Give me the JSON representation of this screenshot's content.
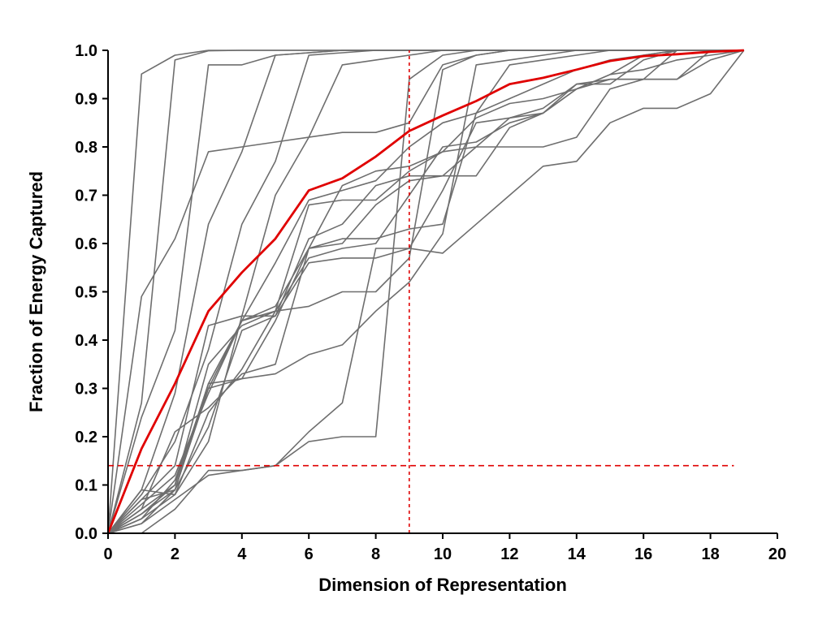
{
  "chart_data": {
    "type": "line",
    "title": "",
    "xlabel": "Dimension of Representation",
    "ylabel": "Fraction of Energy Captured",
    "xlim": [
      0,
      20
    ],
    "ylim": [
      0,
      1
    ],
    "xticks": [
      "0",
      "2",
      "4",
      "6",
      "8",
      "10",
      "12",
      "14",
      "16",
      "18",
      "20"
    ],
    "yticks": [
      "0.0",
      "0.1",
      "0.2",
      "0.3",
      "0.4",
      "0.5",
      "0.6",
      "0.7",
      "0.8",
      "0.9",
      "1.0"
    ],
    "grid": false,
    "legend": "none",
    "colors": {
      "individual": "#6e6e6e",
      "mean": "#e00000",
      "reference": "#e00000"
    },
    "x": [
      0,
      1,
      2,
      3,
      4,
      5,
      6,
      7,
      8,
      9,
      10,
      11,
      12,
      13,
      14,
      15,
      16,
      17,
      18,
      19
    ],
    "series": [
      {
        "values": [
          0,
          0.951,
          0.99,
          1.0,
          1.0,
          1.0,
          1.0,
          1.0,
          1.0,
          1.0,
          1.0,
          1.0,
          1.0,
          1.0,
          1.0,
          1.0,
          1.0,
          1.0,
          1.0,
          1.0
        ]
      },
      {
        "values": [
          0,
          0.49,
          0.61,
          0.79,
          0.8,
          0.81,
          0.82,
          0.83,
          0.83,
          0.85,
          0.97,
          0.99,
          1.0,
          1.0,
          1.0,
          1.0,
          1.0,
          1.0,
          1.0,
          1.0
        ]
      },
      {
        "values": [
          0,
          0.27,
          0.98,
          0.999,
          1.0,
          1.0,
          1.0,
          1.0,
          1.0,
          1.0,
          1.0,
          1.0,
          1.0,
          1.0,
          1.0,
          1.0,
          1.0,
          1.0,
          1.0,
          1.0
        ]
      },
      {
        "values": [
          0,
          0.24,
          0.42,
          0.97,
          0.97,
          0.99,
          0.995,
          1.0,
          1.0,
          1.0,
          1.0,
          1.0,
          1.0,
          1.0,
          1.0,
          1.0,
          1.0,
          1.0,
          1.0,
          1.0
        ]
      },
      {
        "values": [
          0,
          0.09,
          0.29,
          0.64,
          0.79,
          0.99,
          0.995,
          1.0,
          1.0,
          1.0,
          1.0,
          1.0,
          1.0,
          1.0,
          1.0,
          1.0,
          1.0,
          1.0,
          1.0,
          1.0
        ]
      },
      {
        "values": [
          0,
          0.08,
          0.19,
          0.38,
          0.64,
          0.77,
          0.99,
          0.995,
          1.0,
          1.0,
          1.0,
          1.0,
          1.0,
          1.0,
          1.0,
          1.0,
          1.0,
          1.0,
          1.0,
          1.0
        ]
      },
      {
        "values": [
          0,
          0.07,
          0.14,
          0.43,
          0.45,
          0.7,
          0.82,
          0.97,
          0.98,
          0.99,
          1.0,
          1.0,
          1.0,
          1.0,
          1.0,
          1.0,
          1.0,
          1.0,
          1.0,
          1.0
        ]
      },
      {
        "values": [
          0,
          0.06,
          0.12,
          0.29,
          0.44,
          0.46,
          0.47,
          0.5,
          0.5,
          0.57,
          0.96,
          0.99,
          1.0,
          1.0,
          1.0,
          1.0,
          1.0,
          1.0,
          1.0,
          1.0
        ]
      },
      {
        "values": [
          0,
          0.05,
          0.21,
          0.26,
          0.33,
          0.35,
          0.59,
          0.61,
          0.61,
          0.63,
          0.64,
          0.87,
          0.97,
          0.98,
          0.99,
          1.0,
          1.0,
          1.0,
          1.0,
          1.0
        ]
      },
      {
        "values": [
          0,
          0.04,
          0.1,
          0.31,
          0.32,
          0.33,
          0.37,
          0.39,
          0.46,
          0.52,
          0.62,
          0.97,
          0.98,
          0.99,
          1.0,
          1.0,
          1.0,
          1.0,
          1.0,
          1.0
        ]
      },
      {
        "values": [
          0,
          0.09,
          0.08,
          0.19,
          0.45,
          0.45,
          0.61,
          0.64,
          0.72,
          0.74,
          0.74,
          0.74,
          0.84,
          0.87,
          0.92,
          0.94,
          0.94,
          1.0,
          1.0,
          1.0
        ]
      },
      {
        "values": [
          0,
          0.07,
          0.09,
          0.3,
          0.32,
          0.44,
          0.59,
          0.72,
          0.75,
          0.76,
          0.79,
          0.8,
          0.86,
          0.88,
          0.93,
          0.93,
          0.98,
          1.0,
          1.0,
          1.0
        ]
      },
      {
        "values": [
          0,
          0.02,
          0.07,
          0.12,
          0.13,
          0.14,
          0.19,
          0.2,
          0.2,
          0.94,
          0.99,
          1.0,
          1.0,
          1.0,
          1.0,
          1.0,
          1.0,
          1.0,
          1.0,
          1.0
        ]
      },
      {
        "values": [
          0,
          0.0,
          0.05,
          0.13,
          0.13,
          0.14,
          0.21,
          0.27,
          0.59,
          0.59,
          0.71,
          0.85,
          0.86,
          0.87,
          0.93,
          0.94,
          0.94,
          0.94,
          1.0,
          1.0
        ]
      },
      {
        "values": [
          0,
          0.03,
          0.08,
          0.25,
          0.34,
          0.46,
          0.68,
          0.69,
          0.69,
          0.75,
          0.79,
          0.86,
          0.89,
          0.9,
          0.92,
          0.95,
          0.99,
          1.0,
          1.0,
          1.0
        ]
      },
      {
        "values": [
          0,
          0.02,
          0.09,
          0.31,
          0.44,
          0.56,
          0.69,
          0.71,
          0.73,
          0.8,
          0.85,
          0.87,
          0.9,
          0.93,
          0.96,
          0.98,
          0.99,
          1.0,
          1.0,
          1.0
        ]
      },
      {
        "values": [
          0,
          0.04,
          0.09,
          0.22,
          0.42,
          0.45,
          0.56,
          0.57,
          0.57,
          0.59,
          0.58,
          0.64,
          0.7,
          0.76,
          0.77,
          0.85,
          0.88,
          0.88,
          0.91,
          1.0
        ]
      },
      {
        "values": [
          0,
          0.03,
          0.11,
          0.3,
          0.44,
          0.47,
          0.59,
          0.6,
          0.68,
          0.73,
          0.74,
          0.8,
          0.8,
          0.8,
          0.82,
          0.92,
          0.94,
          0.94,
          0.98,
          1.0
        ]
      },
      {
        "values": [
          0,
          0.05,
          0.1,
          0.35,
          0.43,
          0.46,
          0.57,
          0.59,
          0.6,
          0.7,
          0.8,
          0.81,
          0.85,
          0.87,
          0.92,
          0.95,
          0.96,
          0.98,
          0.99,
          1.0
        ]
      }
    ],
    "mean_series": {
      "values": [
        0,
        0.175,
        0.31,
        0.46,
        0.54,
        0.61,
        0.71,
        0.735,
        0.78,
        0.833,
        0.865,
        0.895,
        0.93,
        0.943,
        0.96,
        0.978,
        0.988,
        0.992,
        0.997,
        1.0
      ]
    },
    "reference_lines": [
      {
        "orientation": "vertical",
        "x": 9,
        "y_from": 0,
        "y_to": 1.0
      },
      {
        "orientation": "horizontal",
        "y": 0.14,
        "x_from": 0,
        "x_to": 18.7
      }
    ]
  }
}
